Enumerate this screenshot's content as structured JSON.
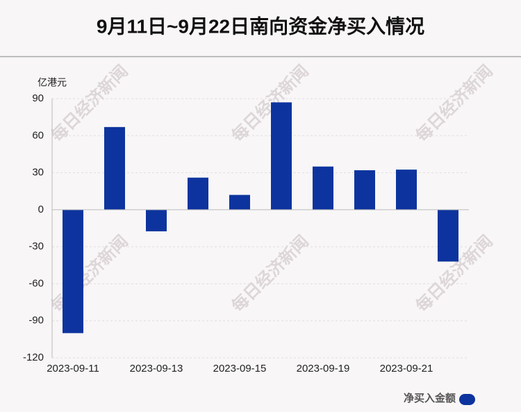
{
  "chart_data": {
    "type": "bar",
    "title": "9月11日~9月22日南向资金净买入情况",
    "y_unit": "亿港元",
    "watermark": "每日经济新闻",
    "categories": [
      "2023-09-11",
      null,
      "2023-09-13",
      null,
      "2023-09-15",
      null,
      "2023-09-19",
      null,
      "2023-09-21",
      null
    ],
    "series": [
      {
        "name": "净买入金额",
        "color": "#0d349e",
        "values": [
          -100,
          67,
          -17.5,
          26,
          12,
          87,
          35,
          32,
          32.5,
          -42
        ]
      }
    ],
    "ylim": [
      -120,
      90
    ],
    "yticks": [
      -120,
      -90,
      -60,
      -30,
      0,
      30,
      60,
      90
    ],
    "grid": true,
    "legend": "bottom-right"
  }
}
